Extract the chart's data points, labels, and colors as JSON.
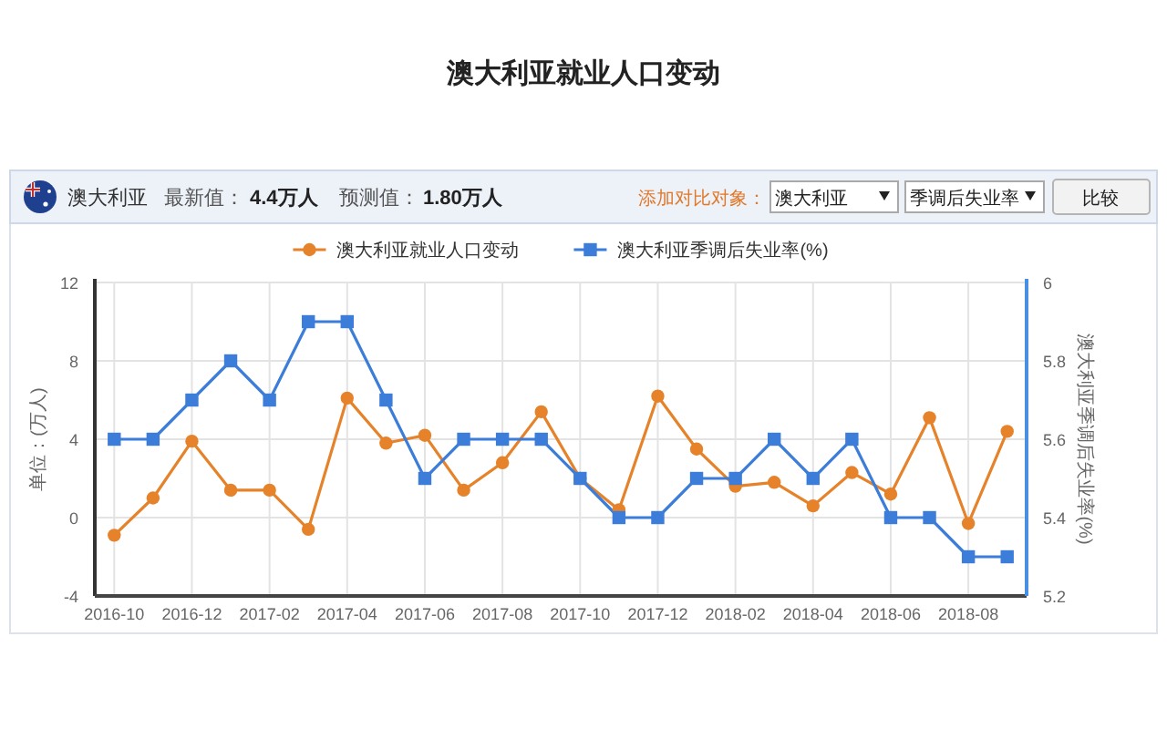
{
  "chart_data": {
    "type": "line",
    "title": "澳大利亚就业人口变动",
    "categories": [
      "2016-10",
      null,
      "2016-12",
      null,
      "2017-02",
      null,
      "2017-04",
      null,
      "2017-06",
      null,
      "2017-08",
      null,
      "2017-10",
      null,
      "2017-12",
      null,
      "2018-02",
      null,
      "2018-04",
      null,
      "2018-06",
      null,
      "2018-08",
      null
    ],
    "series": [
      {
        "name": "澳大利亚就业人口变动",
        "color": "#e5822a",
        "marker": "circle",
        "values": [
          -0.9,
          1.0,
          3.9,
          1.4,
          1.4,
          -0.6,
          6.1,
          3.8,
          4.2,
          1.4,
          2.8,
          5.4,
          2.0,
          0.4,
          6.2,
          3.5,
          1.6,
          1.8,
          0.6,
          2.3,
          1.2,
          5.1,
          -0.3,
          4.4
        ]
      },
      {
        "name": "澳大利亚季调后失业率(%)",
        "color": "#3b7dd8",
        "marker": "square",
        "axis": "y2",
        "values": [
          5.6,
          5.6,
          5.7,
          5.8,
          5.7,
          5.9,
          5.9,
          5.7,
          5.5,
          5.6,
          5.6,
          5.6,
          5.5,
          5.4,
          5.4,
          5.5,
          5.5,
          5.6,
          5.5,
          5.6,
          5.4,
          5.4,
          5.3,
          5.3
        ]
      }
    ],
    "ylabel": "单位：(万人)",
    "y2label": "澳大利亚季调后失业率(%)",
    "ylim": [
      -4,
      12
    ],
    "yticks": [
      -4,
      0,
      4,
      8,
      12
    ],
    "y2lim": [
      5.2,
      6
    ],
    "y2ticks": [
      5.2,
      5.4,
      5.6,
      5.8,
      6
    ],
    "grid": true,
    "legend": "top",
    "line_style": "solid",
    "annotations": [
      "澳大利亚",
      "最新值：",
      "4.4万人",
      "预测值：",
      "1.80万人",
      "添加对比对象：",
      "澳大利亚",
      "季调后失业率",
      "比较"
    ]
  }
}
